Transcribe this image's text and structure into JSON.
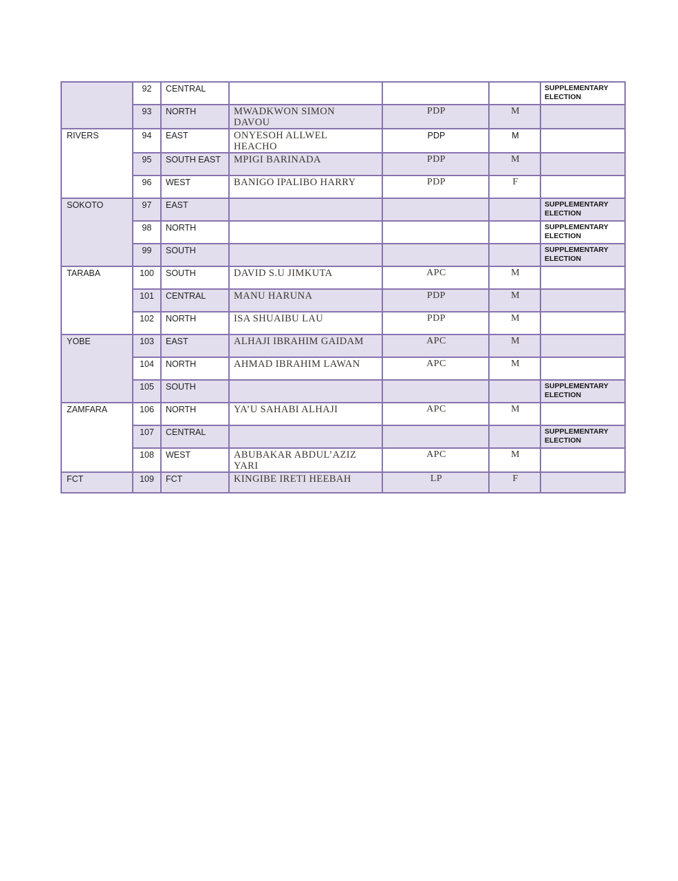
{
  "document": {
    "kind": "election-results-table-page",
    "colors": {
      "page_background": "#ffffff",
      "row_shaded": "#e3deed",
      "row_plain": "#ffffff",
      "table_border": "#8672ae",
      "text_sans": "#1f1f1f",
      "text_serif": "#3b3530"
    },
    "supplementary_note": "SUPPLEMENTARY\nELECTION"
  },
  "table": {
    "groups": [
      {
        "state": "",
        "shaded": true,
        "rows": [
          {
            "sn": "92",
            "district": "CENTRAL",
            "candidate": "",
            "party": "",
            "gender": "",
            "note": "SUPPLEMENTARY\nELECTION",
            "shaded": false,
            "alt_font": false
          },
          {
            "sn": "93",
            "district": "NORTH",
            "candidate": "MWADKWON SIMON\nDAVOU",
            "party": "PDP",
            "gender": "M",
            "note": "",
            "shaded": true,
            "alt_font": false
          }
        ]
      },
      {
        "state": "RIVERS",
        "shaded": false,
        "rows": [
          {
            "sn": "94",
            "district": "EAST",
            "candidate": "ONYESOH ALLWEL\nHEACHO",
            "party": "PDP",
            "gender": "M",
            "note": "",
            "shaded": false,
            "alt_font": true
          },
          {
            "sn": "95",
            "district": "SOUTH EAST",
            "candidate": "MPIGI BARINADA",
            "party": "PDP",
            "gender": "M",
            "note": "",
            "shaded": true,
            "alt_font": false
          },
          {
            "sn": "96",
            "district": "WEST",
            "candidate": "BANIGO IPALIBO HARRY",
            "party": "PDP",
            "gender": "F",
            "note": "",
            "shaded": false,
            "alt_font": false
          }
        ]
      },
      {
        "state": "SOKOTO",
        "shaded": true,
        "rows": [
          {
            "sn": "97",
            "district": "EAST",
            "candidate": "",
            "party": "",
            "gender": "",
            "note": "SUPPLEMENTARY\nELECTION",
            "shaded": true,
            "alt_font": false
          },
          {
            "sn": "98",
            "district": "NORTH",
            "candidate": "",
            "party": "",
            "gender": "",
            "note": "SUPPLEMENTARY\nELECTION",
            "shaded": false,
            "alt_font": false
          },
          {
            "sn": "99",
            "district": "SOUTH",
            "candidate": "",
            "party": "",
            "gender": "",
            "note": "SUPPLEMENTARY\nELECTION",
            "shaded": true,
            "alt_font": false
          }
        ]
      },
      {
        "state": "TARABA",
        "shaded": false,
        "rows": [
          {
            "sn": "100",
            "district": "SOUTH",
            "candidate": "DAVID S.U JIMKUTA",
            "party": "APC",
            "gender": "M",
            "note": "",
            "shaded": false,
            "alt_font": false
          },
          {
            "sn": "101",
            "district": "CENTRAL",
            "candidate": "MANU HARUNA",
            "party": "PDP",
            "gender": "M",
            "note": "",
            "shaded": true,
            "alt_font": false
          },
          {
            "sn": "102",
            "district": "NORTH",
            "candidate": "ISA SHUAIBU LAU",
            "party": "PDP",
            "gender": "M",
            "note": "",
            "shaded": false,
            "alt_font": false
          }
        ]
      },
      {
        "state": "YOBE",
        "shaded": true,
        "rows": [
          {
            "sn": "103",
            "district": "EAST",
            "candidate": "ALHAJI IBRAHIM GAIDAM",
            "party": "APC",
            "gender": "M",
            "note": "",
            "shaded": true,
            "alt_font": false
          },
          {
            "sn": "104",
            "district": "NORTH",
            "candidate": "AHMAD IBRAHIM LAWAN",
            "party": "APC",
            "gender": "M",
            "note": "",
            "shaded": false,
            "alt_font": false
          },
          {
            "sn": "105",
            "district": "SOUTH",
            "candidate": "",
            "party": "",
            "gender": "",
            "note": "SUPPLEMENTARY\nELECTION",
            "shaded": true,
            "alt_font": false
          }
        ]
      },
      {
        "state": "ZAMFARA",
        "shaded": false,
        "rows": [
          {
            "sn": "106",
            "district": "NORTH",
            "candidate": "YA’U SAHABI ALHAJI",
            "party": "APC",
            "gender": "M",
            "note": "",
            "shaded": false,
            "alt_font": false
          },
          {
            "sn": "107",
            "district": "CENTRAL",
            "candidate": "",
            "party": "",
            "gender": "",
            "note": "SUPPLEMENTARY\nELECTION",
            "shaded": true,
            "alt_font": false
          },
          {
            "sn": "108",
            "district": "WEST",
            "candidate": "ABUBAKAR ABDUL’AZIZ\nYARI",
            "party": "APC",
            "gender": "M",
            "note": "",
            "shaded": false,
            "alt_font": false
          }
        ]
      },
      {
        "state": "FCT",
        "shaded": true,
        "rows": [
          {
            "sn": "109",
            "district": "FCT",
            "candidate": "KINGIBE IRETI HEEBAH",
            "party": "LP",
            "gender": "F",
            "note": "",
            "shaded": true,
            "alt_font": false
          }
        ]
      }
    ]
  }
}
